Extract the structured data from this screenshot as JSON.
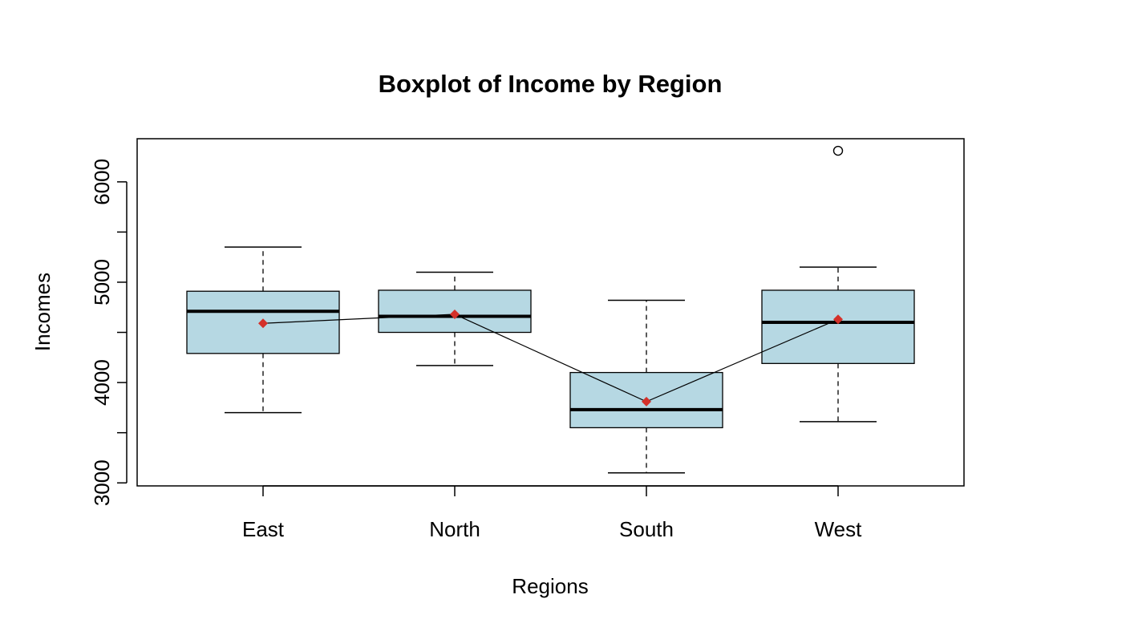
{
  "chart_data": {
    "type": "boxplot",
    "title": "Boxplot of Income by Region",
    "xlabel": "Regions",
    "ylabel": "Incomes",
    "ylim": [
      2970,
      6430
    ],
    "yticks": [
      3000,
      4000,
      5000,
      6000
    ],
    "y_minor_ticks": [
      3500,
      4500,
      5500
    ],
    "categories": [
      "East",
      "North",
      "South",
      "West"
    ],
    "boxes": [
      {
        "name": "East",
        "min": 3700,
        "q1": 4290,
        "median": 4710,
        "q3": 4910,
        "max": 5350,
        "mean": 4590,
        "outliers": []
      },
      {
        "name": "North",
        "min": 4170,
        "q1": 4500,
        "median": 4660,
        "q3": 4920,
        "max": 5100,
        "mean": 4680,
        "outliers": []
      },
      {
        "name": "South",
        "min": 3100,
        "q1": 3550,
        "median": 3730,
        "q3": 4100,
        "max": 4820,
        "mean": 3810,
        "outliers": []
      },
      {
        "name": "West",
        "min": 3610,
        "q1": 4190,
        "median": 4600,
        "q3": 4920,
        "max": 5150,
        "mean": 4630,
        "outliers": [
          6310
        ]
      }
    ],
    "mean_line": true,
    "colors": {
      "box_fill": "#b6d8e3",
      "mean_marker": "#d4312a",
      "line": "#000000"
    },
    "grid": false,
    "legend": "none"
  }
}
